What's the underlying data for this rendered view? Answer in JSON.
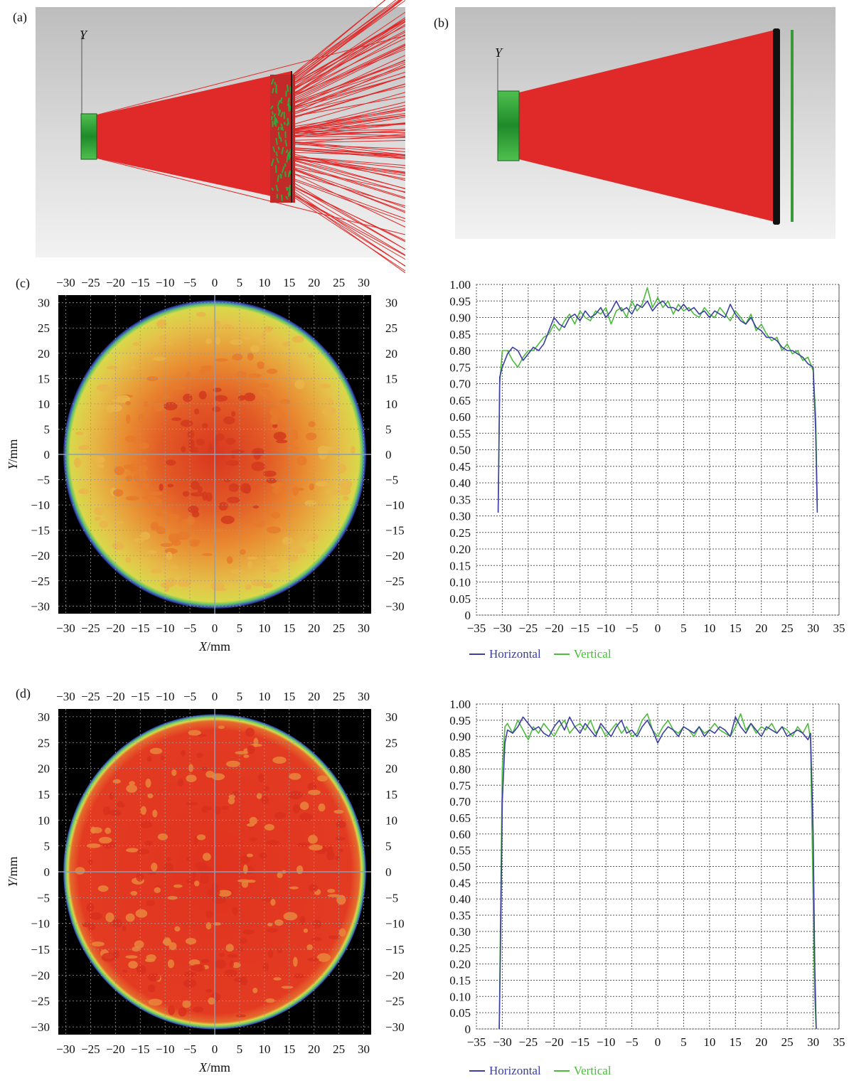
{
  "panels": {
    "a": {
      "label": "(a)",
      "axis_label": "Y"
    },
    "b": {
      "label": "(b)",
      "axis_label": "Y"
    },
    "c": {
      "label": "(c)"
    },
    "d": {
      "label": "(d)"
    }
  },
  "maps": {
    "x_ticks": [
      "−30",
      "−25",
      "−20",
      "−15",
      "−10",
      "−5",
      "0",
      "5",
      "10",
      "15",
      "20",
      "25",
      "30"
    ],
    "y_ticks": [
      "30",
      "25",
      "20",
      "15",
      "10",
      "5",
      "0",
      "−5",
      "−10",
      "−15",
      "−20",
      "−25",
      "−30"
    ],
    "xlabel_var": "X",
    "xlabel_unit": "/mm",
    "ylabel_var": "Y",
    "ylabel_unit": "/mm"
  },
  "colors": {
    "horizontal": "#3a3fa0",
    "vertical": "#4cbb3c",
    "beam": "#e02020",
    "lens": "#2fa83a"
  },
  "legend": {
    "horizontal": "Horizontal",
    "vertical": "Vertical"
  },
  "chart_data": [
    {
      "type": "line",
      "panel": "c",
      "xlim": [
        -35,
        35
      ],
      "ylim": [
        0,
        1.0
      ],
      "x_ticks": [
        "−35",
        "−30",
        "−25",
        "−20",
        "−15",
        "−10",
        "−5",
        "0",
        "5",
        "10",
        "15",
        "20",
        "25",
        "30",
        "35"
      ],
      "y_ticks": [
        "0",
        "0.05",
        "0.10",
        "0.15",
        "0.20",
        "0.25",
        "0.30",
        "0.35",
        "0.40",
        "0.45",
        "0.50",
        "0.55",
        "0.60",
        "0.65",
        "0.70",
        "0.75",
        "0.80",
        "0.85",
        "0.90",
        "0.95",
        "1.00"
      ],
      "grid": true,
      "legend": "bottom",
      "series": [
        {
          "name": "Horizontal",
          "x": [
            -30.8,
            -30.5,
            -30,
            -29,
            -28,
            -27,
            -26,
            -25,
            -24,
            -23,
            -22,
            -21,
            -20,
            -19,
            -18,
            -17,
            -16,
            -15,
            -14,
            -13,
            -12,
            -11,
            -10,
            -9,
            -8,
            -7,
            -6,
            -5,
            -4,
            -3,
            -2,
            -1,
            0,
            1,
            2,
            3,
            4,
            5,
            6,
            7,
            8,
            9,
            10,
            11,
            12,
            13,
            14,
            15,
            16,
            17,
            18,
            19,
            20,
            21,
            22,
            23,
            24,
            25,
            26,
            27,
            28,
            29,
            30,
            30.5,
            30.8
          ],
          "y": [
            0.31,
            0.72,
            0.75,
            0.79,
            0.81,
            0.8,
            0.77,
            0.79,
            0.81,
            0.8,
            0.82,
            0.86,
            0.9,
            0.88,
            0.87,
            0.9,
            0.91,
            0.89,
            0.92,
            0.9,
            0.91,
            0.93,
            0.9,
            0.92,
            0.95,
            0.92,
            0.93,
            0.91,
            0.94,
            0.93,
            0.95,
            0.92,
            0.94,
            0.95,
            0.93,
            0.93,
            0.92,
            0.94,
            0.92,
            0.93,
            0.91,
            0.92,
            0.9,
            0.92,
            0.91,
            0.9,
            0.94,
            0.91,
            0.89,
            0.88,
            0.9,
            0.87,
            0.86,
            0.84,
            0.84,
            0.83,
            0.81,
            0.8,
            0.8,
            0.79,
            0.78,
            0.76,
            0.75,
            0.55,
            0.31
          ]
        },
        {
          "name": "Vertical",
          "x": [
            -30.8,
            -30.5,
            -30,
            -29,
            -28,
            -27,
            -26,
            -25,
            -24,
            -23,
            -22,
            -21,
            -20,
            -19,
            -18,
            -17,
            -16,
            -15,
            -14,
            -13,
            -12,
            -11,
            -10,
            -9,
            -8,
            -7,
            -6,
            -5,
            -4,
            -3,
            -2,
            -1,
            0,
            1,
            2,
            3,
            4,
            5,
            6,
            7,
            8,
            9,
            10,
            11,
            12,
            13,
            14,
            15,
            16,
            17,
            18,
            19,
            20,
            21,
            22,
            23,
            24,
            25,
            26,
            27,
            28,
            29,
            30,
            30.5,
            30.8
          ],
          "y": [
            0.31,
            0.7,
            0.8,
            0.8,
            0.77,
            0.75,
            0.78,
            0.8,
            0.8,
            0.82,
            0.84,
            0.85,
            0.88,
            0.86,
            0.89,
            0.91,
            0.88,
            0.92,
            0.9,
            0.89,
            0.92,
            0.91,
            0.93,
            0.88,
            0.92,
            0.93,
            0.9,
            0.95,
            0.92,
            0.94,
            0.99,
            0.93,
            0.96,
            0.93,
            0.95,
            0.91,
            0.94,
            0.92,
            0.93,
            0.91,
            0.9,
            0.93,
            0.91,
            0.9,
            0.93,
            0.91,
            0.89,
            0.92,
            0.9,
            0.88,
            0.91,
            0.86,
            0.88,
            0.85,
            0.83,
            0.84,
            0.8,
            0.82,
            0.79,
            0.8,
            0.77,
            0.78,
            0.74,
            0.6,
            0.33
          ]
        }
      ]
    },
    {
      "type": "line",
      "panel": "d",
      "xlim": [
        -35,
        35
      ],
      "ylim": [
        0,
        1.0
      ],
      "x_ticks": [
        "−35",
        "−30",
        "−25",
        "−20",
        "−15",
        "−10",
        "−5",
        "0",
        "5",
        "10",
        "15",
        "20",
        "25",
        "30",
        "35"
      ],
      "y_ticks": [
        "0",
        "0.05",
        "0.10",
        "0.15",
        "0.20",
        "0.25",
        "0.30",
        "0.35",
        "0.40",
        "0.45",
        "0.50",
        "0.55",
        "0.60",
        "0.65",
        "0.70",
        "0.75",
        "0.80",
        "0.85",
        "0.90",
        "0.95",
        "1.00"
      ],
      "grid": true,
      "legend": "bottom",
      "series": [
        {
          "name": "Horizontal",
          "x": [
            -30.6,
            -30.3,
            -30,
            -29.5,
            -29,
            -28,
            -27,
            -26,
            -25,
            -24,
            -23,
            -22,
            -21,
            -20,
            -19,
            -18,
            -17,
            -16,
            -15,
            -14,
            -13,
            -12,
            -11,
            -10,
            -9,
            -8,
            -7,
            -6,
            -5,
            -4,
            -3,
            -2,
            -1,
            0,
            1,
            2,
            3,
            4,
            5,
            6,
            7,
            8,
            9,
            10,
            11,
            12,
            13,
            14,
            15,
            16,
            17,
            18,
            19,
            20,
            21,
            22,
            23,
            24,
            25,
            26,
            27,
            28,
            29,
            29.5,
            30,
            30.3,
            30.6
          ],
          "y": [
            0.0,
            0.3,
            0.7,
            0.88,
            0.92,
            0.91,
            0.93,
            0.96,
            0.94,
            0.92,
            0.93,
            0.91,
            0.9,
            0.93,
            0.95,
            0.92,
            0.96,
            0.93,
            0.91,
            0.94,
            0.92,
            0.9,
            0.94,
            0.92,
            0.9,
            0.93,
            0.95,
            0.91,
            0.92,
            0.9,
            0.93,
            0.95,
            0.92,
            0.88,
            0.91,
            0.93,
            0.92,
            0.9,
            0.93,
            0.92,
            0.91,
            0.93,
            0.9,
            0.92,
            0.91,
            0.93,
            0.92,
            0.9,
            0.96,
            0.93,
            0.91,
            0.94,
            0.92,
            0.9,
            0.93,
            0.92,
            0.91,
            0.93,
            0.9,
            0.91,
            0.92,
            0.91,
            0.89,
            0.91,
            0.6,
            0.2,
            0.0
          ]
        },
        {
          "name": "Vertical",
          "x": [
            -30.6,
            -30.3,
            -30,
            -29.5,
            -29,
            -28,
            -27,
            -26,
            -25,
            -24,
            -23,
            -22,
            -21,
            -20,
            -19,
            -18,
            -17,
            -16,
            -15,
            -14,
            -13,
            -12,
            -11,
            -10,
            -9,
            -8,
            -7,
            -6,
            -5,
            -4,
            -3,
            -2,
            -1,
            0,
            1,
            2,
            3,
            4,
            5,
            6,
            7,
            8,
            9,
            10,
            11,
            12,
            13,
            14,
            15,
            16,
            17,
            18,
            19,
            20,
            21,
            22,
            23,
            24,
            25,
            26,
            27,
            28,
            29,
            29.5,
            30,
            30.3,
            30.6
          ],
          "y": [
            0.0,
            0.4,
            0.8,
            0.93,
            0.94,
            0.91,
            0.95,
            0.92,
            0.89,
            0.93,
            0.91,
            0.94,
            0.92,
            0.9,
            0.93,
            0.95,
            0.91,
            0.93,
            0.94,
            0.92,
            0.95,
            0.91,
            0.93,
            0.9,
            0.92,
            0.94,
            0.91,
            0.93,
            0.9,
            0.91,
            0.95,
            0.97,
            0.92,
            0.9,
            0.93,
            0.95,
            0.92,
            0.91,
            0.93,
            0.92,
            0.9,
            0.93,
            0.91,
            0.92,
            0.94,
            0.92,
            0.91,
            0.9,
            0.93,
            0.97,
            0.92,
            0.94,
            0.91,
            0.93,
            0.92,
            0.94,
            0.91,
            0.93,
            0.92,
            0.9,
            0.93,
            0.91,
            0.94,
            0.89,
            0.4,
            0.1,
            0.0
          ]
        }
      ]
    }
  ]
}
